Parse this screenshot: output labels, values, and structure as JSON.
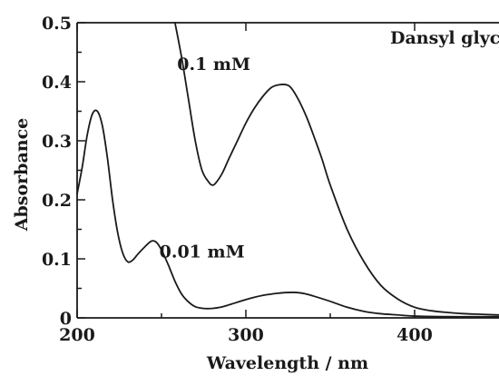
{
  "chart_data": {
    "type": "line",
    "title": "",
    "xlabel": "Wavelength / nm",
    "ylabel": "Absorbance",
    "xlim": [
      200,
      450
    ],
    "ylim": [
      0,
      0.5
    ],
    "x_ticks": [
      200,
      300,
      400
    ],
    "x_tick_labels": [
      "200",
      "300",
      "400"
    ],
    "y_ticks": [
      0,
      0.1,
      0.2,
      0.3,
      0.4,
      0.5
    ],
    "y_tick_labels": [
      "0",
      "0.1",
      "0.2",
      "0.3",
      "0.4",
      "0.5"
    ],
    "grid": false,
    "legend": "none",
    "annotations": [
      {
        "text": "Dansyl glycine",
        "x": 427,
        "y": 0.465
      },
      {
        "text": "0.1 mM",
        "x": 281,
        "y": 0.42
      },
      {
        "text": "0.01 mM",
        "x": 274,
        "y": 0.102
      }
    ],
    "series": [
      {
        "x": [
          258,
          262,
          266,
          270,
          274,
          278,
          280,
          282,
          286,
          290,
          295,
          300,
          305,
          310,
          315,
          320,
          325,
          328,
          332,
          336,
          340,
          345,
          350,
          360,
          370,
          380,
          390,
          400,
          410,
          420,
          430,
          440,
          450
        ],
        "y": [
          0.5,
          0.44,
          0.37,
          0.3,
          0.25,
          0.23,
          0.225,
          0.228,
          0.245,
          0.27,
          0.3,
          0.33,
          0.355,
          0.375,
          0.39,
          0.395,
          0.394,
          0.385,
          0.365,
          0.34,
          0.31,
          0.27,
          0.225,
          0.15,
          0.095,
          0.055,
          0.032,
          0.018,
          0.012,
          0.009,
          0.007,
          0.006,
          0.005
        ]
      },
      {
        "x": [
          200,
          203,
          206,
          209,
          212,
          215,
          218,
          221,
          224,
          227,
          230,
          233,
          236,
          240,
          244,
          247,
          250,
          254,
          258,
          262,
          266,
          270,
          275,
          280,
          285,
          290,
          300,
          310,
          320,
          325,
          330,
          335,
          340,
          350,
          360,
          370,
          380,
          390,
          400,
          420,
          450
        ],
        "y": [
          0.21,
          0.255,
          0.31,
          0.345,
          0.35,
          0.325,
          0.27,
          0.2,
          0.145,
          0.11,
          0.095,
          0.098,
          0.108,
          0.12,
          0.13,
          0.128,
          0.115,
          0.09,
          0.062,
          0.04,
          0.027,
          0.019,
          0.016,
          0.016,
          0.018,
          0.022,
          0.031,
          0.038,
          0.042,
          0.043,
          0.043,
          0.041,
          0.037,
          0.028,
          0.018,
          0.011,
          0.007,
          0.005,
          0.003,
          0.002,
          0.002
        ]
      }
    ]
  }
}
